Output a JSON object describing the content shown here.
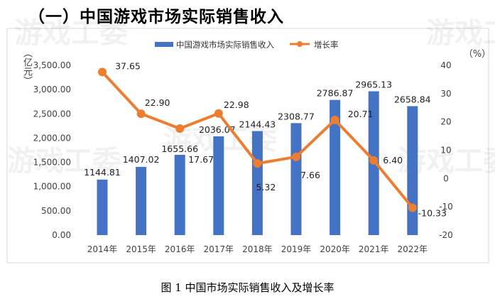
{
  "title": "（一）中国游戏市场实际销售收入",
  "caption": "图 1 中国市场实际销售收入及增长率",
  "watermark": "游戏工委",
  "colors": {
    "bar": "#4472C4",
    "line": "#ED7D31"
  },
  "chart_data": {
    "type": "bar+line",
    "categories": [
      "2014年",
      "2015年",
      "2016年",
      "2017年",
      "2018年",
      "2019年",
      "2020年",
      "2021年",
      "2022年"
    ],
    "series": [
      {
        "name": "中国游戏市场实际销售收入",
        "type": "bar",
        "axis": "left",
        "values": [
          1144.81,
          1407.02,
          1655.66,
          2036.07,
          2144.43,
          2308.77,
          2786.87,
          2965.13,
          2658.84
        ],
        "labels": [
          "1144.81",
          "1407.02",
          "1655.66",
          "2036.07",
          "2144.43",
          "2308.77",
          "2786.87",
          "2965.13",
          "2658.84"
        ]
      },
      {
        "name": "增长率",
        "type": "line",
        "axis": "right",
        "values": [
          37.65,
          22.9,
          17.67,
          22.98,
          5.32,
          7.66,
          20.71,
          6.4,
          -10.33
        ],
        "labels": [
          "37.65",
          "22.90",
          "17.67",
          "22.98",
          "5.32",
          "7.66",
          "20.71",
          "6.40",
          "-10.33"
        ]
      }
    ],
    "y_left": {
      "label": "（亿元）",
      "ylim": [
        0,
        3500
      ],
      "ticks": [
        "0.00",
        "500.00",
        "1,000.00",
        "1,500.00",
        "2,000.00",
        "2,500.00",
        "3,000.00",
        "3,500.00"
      ]
    },
    "y_right": {
      "label": "（%）",
      "ylim": [
        -20,
        40
      ],
      "ticks": [
        "-20",
        "-10",
        "0",
        "10",
        "20",
        "30",
        "40"
      ]
    },
    "grid": false,
    "legend": "top"
  }
}
